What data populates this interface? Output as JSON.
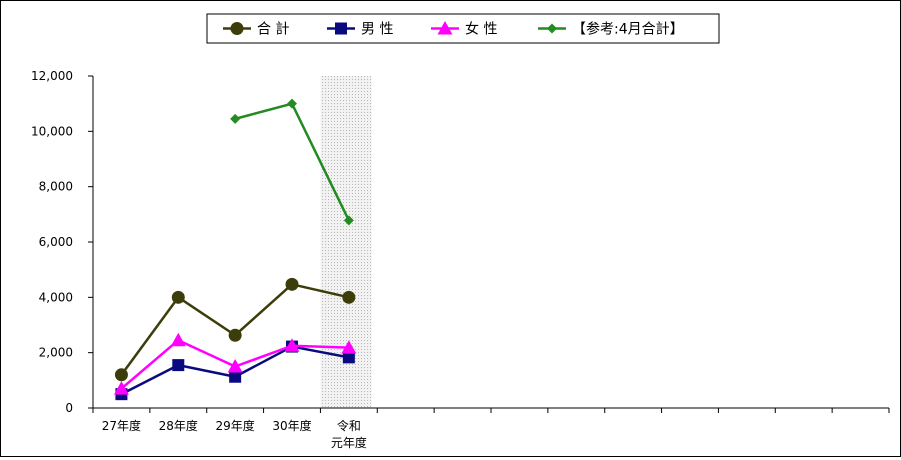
{
  "chart_data": {
    "type": "line",
    "title": "",
    "xlabel": "",
    "ylabel": "",
    "ylim": [
      0,
      12000
    ],
    "yticks": [
      0,
      2000,
      4000,
      6000,
      8000,
      10000,
      12000
    ],
    "ytick_labels": [
      "0",
      "2,000",
      "4,000",
      "6,000",
      "8,000",
      "10,000",
      "12,000"
    ],
    "categories": [
      "27年度",
      "28年度",
      "29年度",
      "30年度",
      "令和\n元年度",
      "",
      "",
      "",
      "",
      "",
      "",
      "",
      "",
      ""
    ],
    "highlighted_category_index": 4,
    "legend_position": "top-center",
    "grid": false,
    "series": [
      {
        "name": "合 計",
        "color": "#3d3d0b",
        "marker": "circle",
        "values": [
          1200,
          4000,
          2630,
          4470,
          4000,
          null,
          null,
          null,
          null,
          null,
          null,
          null,
          null,
          null
        ]
      },
      {
        "name": "男 性",
        "color": "#0a0a80",
        "marker": "square",
        "values": [
          500,
          1550,
          1130,
          2220,
          1830,
          null,
          null,
          null,
          null,
          null,
          null,
          null,
          null,
          null
        ]
      },
      {
        "name": "女 性",
        "color": "#ff00ff",
        "marker": "triangle",
        "values": [
          700,
          2450,
          1500,
          2250,
          2180,
          null,
          null,
          null,
          null,
          null,
          null,
          null,
          null,
          null
        ]
      },
      {
        "name": "【参考:4月合計】",
        "color": "#228b22",
        "marker": "diamond",
        "values": [
          null,
          null,
          10450,
          11000,
          6780,
          null,
          null,
          null,
          null,
          null,
          null,
          null,
          null,
          null
        ]
      }
    ]
  }
}
